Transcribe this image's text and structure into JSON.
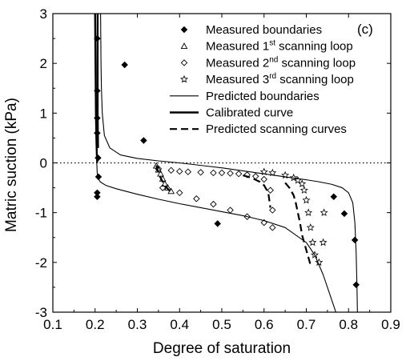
{
  "chart_data": {
    "type": "scatter",
    "panel_label": "(c)",
    "xlabel": "Degree of saturation",
    "ylabel": "Matric suction (kPa)",
    "xlim": [
      0.1,
      0.9
    ],
    "ylim": [
      -3,
      3
    ],
    "x_ticks": [
      0.1,
      0.2,
      0.3,
      0.4,
      0.5,
      0.6,
      0.7,
      0.8,
      0.9
    ],
    "y_ticks": [
      -3,
      -2,
      -1,
      0,
      1,
      2,
      3
    ],
    "reference_line": {
      "y": 0,
      "style": "dotted"
    },
    "legend_position": "top-right",
    "legend": [
      {
        "key": "boundaries_meas",
        "label": "Measured boundaries",
        "marker": "diamond-filled"
      },
      {
        "key": "scan1",
        "label": "Measured 1",
        "sup": "st",
        "label_suffix": " scanning loop",
        "marker": "triangle-open"
      },
      {
        "key": "scan2",
        "label": "Measured 2",
        "sup": "nd",
        "label_suffix": " scanning loop",
        "marker": "diamond-open"
      },
      {
        "key": "scan3",
        "label": "Measured 3",
        "sup": "rd",
        "label_suffix": " scanning loop",
        "marker": "star-open"
      },
      {
        "key": "pred_boundaries",
        "label": "Predicted boundaries",
        "line": "thin"
      },
      {
        "key": "calibrated",
        "label": "Calibrated curve",
        "line": "thick"
      },
      {
        "key": "pred_scanning",
        "label": "Predicted scanning curves",
        "line": "dashed"
      }
    ],
    "series": [
      {
        "key": "boundaries_meas",
        "name": "Measured boundaries",
        "x": [
          0.205,
          0.205,
          0.205,
          0.205,
          0.207,
          0.208,
          0.205,
          0.205,
          0.27,
          0.315,
          0.49,
          0.765,
          0.79,
          0.815,
          0.818
        ],
        "y": [
          2.5,
          1.45,
          0.9,
          0.6,
          0.1,
          -0.28,
          -0.6,
          -0.68,
          1.97,
          0.45,
          -1.22,
          -0.68,
          -1.02,
          -1.55,
          -2.45
        ]
      },
      {
        "key": "scan1",
        "name": "Measured 1st scanning loop",
        "x": [
          0.345,
          0.35,
          0.355,
          0.36,
          0.365,
          0.372,
          0.38
        ],
        "y": [
          -0.06,
          -0.14,
          -0.22,
          -0.32,
          -0.42,
          -0.5,
          -0.57
        ]
      },
      {
        "key": "scan2",
        "name": "Measured 2nd scanning loop",
        "x": [
          0.35,
          0.38,
          0.4,
          0.42,
          0.45,
          0.48,
          0.5,
          0.52,
          0.54,
          0.56,
          0.58,
          0.6,
          0.615,
          0.62,
          0.36,
          0.4,
          0.44,
          0.48,
          0.52,
          0.56,
          0.6,
          0.62
        ],
        "y": [
          -0.12,
          -0.15,
          -0.17,
          -0.18,
          -0.19,
          -0.2,
          -0.2,
          -0.21,
          -0.22,
          -0.24,
          -0.27,
          -0.33,
          -0.55,
          -0.95,
          -0.5,
          -0.6,
          -0.72,
          -0.83,
          -0.95,
          -1.08,
          -1.2,
          -1.3
        ]
      },
      {
        "key": "scan3",
        "name": "Measured 3rd scanning loop",
        "x": [
          0.6,
          0.62,
          0.65,
          0.67,
          0.68,
          0.69,
          0.695,
          0.7,
          0.705,
          0.71,
          0.715,
          0.72,
          0.73,
          0.74,
          0.742
        ],
        "y": [
          -0.18,
          -0.2,
          -0.25,
          -0.3,
          -0.35,
          -0.42,
          -0.55,
          -0.75,
          -1.0,
          -1.3,
          -1.6,
          -1.85,
          -2.0,
          -1.6,
          -1.0
        ]
      },
      {
        "key": "pred_boundaries",
        "name": "Predicted boundaries",
        "style": "thin",
        "segments": [
          {
            "x": [
              0.213,
              0.214,
              0.215,
              0.217,
              0.222,
              0.235,
              0.26,
              0.3,
              0.35,
              0.4,
              0.45,
              0.5,
              0.55,
              0.6,
              0.65,
              0.7,
              0.73,
              0.76,
              0.785,
              0.8,
              0.81,
              0.815,
              0.818,
              0.82,
              0.821
            ],
            "y": [
              3.0,
              2.0,
              1.5,
              1.0,
              0.55,
              0.3,
              0.16,
              0.09,
              0.04,
              0.0,
              -0.05,
              -0.1,
              -0.16,
              -0.22,
              -0.28,
              -0.34,
              -0.38,
              -0.43,
              -0.5,
              -0.6,
              -0.8,
              -1.2,
              -1.8,
              -2.5,
              -3.0
            ]
          },
          {
            "x": [
              0.204,
              0.205,
              0.207,
              0.212,
              0.225,
              0.25,
              0.3,
              0.35,
              0.4,
              0.45,
              0.5,
              0.55,
              0.6,
              0.65,
              0.7,
              0.72,
              0.74,
              0.76,
              0.77
            ],
            "y": [
              0.0,
              -0.2,
              -0.3,
              -0.38,
              -0.45,
              -0.52,
              -0.63,
              -0.73,
              -0.82,
              -0.9,
              -0.98,
              -1.06,
              -1.16,
              -1.3,
              -1.6,
              -1.85,
              -2.25,
              -2.75,
              -3.0
            ]
          }
        ]
      },
      {
        "key": "calibrated",
        "name": "Calibrated curve",
        "style": "thick",
        "segments": [
          {
            "x": [
              0.2,
              0.201,
              0.202,
              0.203,
              0.204,
              0.205
            ],
            "y": [
              3.0,
              2.0,
              1.0,
              0.5,
              0.2,
              0.0
            ]
          },
          {
            "x": [
              0.206,
              0.206,
              0.206,
              0.207
            ],
            "y": [
              3.0,
              2.0,
              1.0,
              0.3
            ]
          }
        ]
      },
      {
        "key": "pred_scanning",
        "name": "Predicted scanning curves",
        "style": "dashed",
        "segments": [
          {
            "x": [
              0.345,
              0.348,
              0.355,
              0.365,
              0.375,
              0.385
            ],
            "y": [
              -0.05,
              -0.15,
              -0.3,
              -0.45,
              -0.55,
              -0.6
            ]
          },
          {
            "x": [
              0.55,
              0.57,
              0.59,
              0.6,
              0.61,
              0.615
            ],
            "y": [
              -0.25,
              -0.3,
              -0.38,
              -0.45,
              -0.6,
              -0.9
            ]
          },
          {
            "x": [
              0.65,
              0.66,
              0.67,
              0.675,
              0.68,
              0.685,
              0.69,
              0.7,
              0.71
            ],
            "y": [
              -0.4,
              -0.5,
              -0.65,
              -0.8,
              -1.0,
              -1.2,
              -1.45,
              -1.75,
              -2.05
            ]
          }
        ]
      }
    ]
  }
}
